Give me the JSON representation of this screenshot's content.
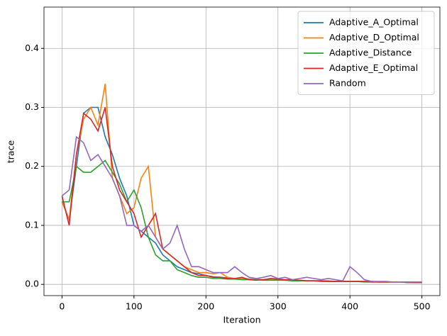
{
  "chart_data": {
    "type": "line",
    "xlabel": "Iteration",
    "ylabel": "trace",
    "x": [
      0,
      10,
      20,
      30,
      40,
      50,
      60,
      70,
      80,
      90,
      100,
      110,
      120,
      130,
      140,
      150,
      160,
      170,
      180,
      190,
      200,
      210,
      220,
      230,
      240,
      250,
      260,
      270,
      280,
      290,
      300,
      310,
      320,
      330,
      340,
      350,
      360,
      370,
      380,
      390,
      400,
      410,
      420,
      430,
      440,
      450,
      460,
      470,
      480,
      490,
      500
    ],
    "series": [
      {
        "name": "Adaptive_A_Optimal",
        "color": "#1f77b4",
        "values": [
          0.14,
          0.11,
          0.2,
          0.29,
          0.3,
          0.3,
          0.25,
          0.22,
          0.18,
          0.15,
          0.1,
          0.09,
          0.08,
          0.07,
          0.05,
          0.04,
          0.03,
          0.025,
          0.02,
          0.018,
          0.015,
          0.013,
          0.012,
          0.011,
          0.01,
          0.01,
          0.009,
          0.009,
          0.008,
          0.008,
          0.008,
          0.007,
          0.007,
          0.007,
          0.006,
          0.006,
          0.006,
          0.006,
          0.005,
          0.005,
          0.005,
          0.005,
          0.005,
          0.005,
          0.004,
          0.004,
          0.004,
          0.004,
          0.004,
          0.003,
          0.003
        ]
      },
      {
        "name": "Adaptive_D_Optimal",
        "color": "#ff7f0e",
        "values": [
          0.14,
          0.11,
          0.22,
          0.28,
          0.3,
          0.27,
          0.34,
          0.18,
          0.15,
          0.12,
          0.13,
          0.18,
          0.2,
          0.08,
          0.06,
          0.05,
          0.04,
          0.03,
          0.025,
          0.02,
          0.02,
          0.018,
          0.02,
          0.012,
          0.01,
          0.01,
          0.009,
          0.009,
          0.008,
          0.008,
          0.008,
          0.007,
          0.007,
          0.007,
          0.006,
          0.006,
          0.006,
          0.006,
          0.005,
          0.005,
          0.005,
          0.005,
          0.005,
          0.005,
          0.004,
          0.004,
          0.004,
          0.004,
          0.004,
          0.003,
          0.003
        ]
      },
      {
        "name": "Adaptive_Distance",
        "color": "#2ca02c",
        "values": [
          0.14,
          0.14,
          0.2,
          0.19,
          0.19,
          0.2,
          0.21,
          0.19,
          0.17,
          0.14,
          0.16,
          0.13,
          0.08,
          0.05,
          0.04,
          0.04,
          0.025,
          0.02,
          0.015,
          0.012,
          0.012,
          0.01,
          0.01,
          0.009,
          0.009,
          0.008,
          0.008,
          0.008,
          0.007,
          0.007,
          0.007,
          0.007,
          0.006,
          0.006,
          0.006,
          0.006,
          0.005,
          0.005,
          0.005,
          0.005,
          0.005,
          0.005,
          0.004,
          0.004,
          0.004,
          0.004,
          0.004,
          0.004,
          0.003,
          0.003,
          0.003
        ]
      },
      {
        "name": "Adaptive_E_Optimal",
        "color": "#d62728",
        "values": [
          0.15,
          0.1,
          0.22,
          0.29,
          0.28,
          0.26,
          0.3,
          0.2,
          0.16,
          0.14,
          0.12,
          0.08,
          0.1,
          0.12,
          0.06,
          0.05,
          0.04,
          0.03,
          0.02,
          0.015,
          0.015,
          0.012,
          0.012,
          0.01,
          0.01,
          0.012,
          0.008,
          0.007,
          0.008,
          0.01,
          0.009,
          0.008,
          0.008,
          0.007,
          0.006,
          0.006,
          0.006,
          0.005,
          0.005,
          0.005,
          0.005,
          0.005,
          0.005,
          0.004,
          0.004,
          0.004,
          0.004,
          0.004,
          0.004,
          0.003,
          0.003
        ]
      },
      {
        "name": "Random",
        "color": "#9467bd",
        "values": [
          0.15,
          0.16,
          0.25,
          0.24,
          0.21,
          0.22,
          0.2,
          0.18,
          0.15,
          0.1,
          0.1,
          0.09,
          0.1,
          0.08,
          0.06,
          0.07,
          0.1,
          0.06,
          0.03,
          0.03,
          0.025,
          0.02,
          0.02,
          0.02,
          0.03,
          0.02,
          0.012,
          0.01,
          0.012,
          0.015,
          0.01,
          0.012,
          0.008,
          0.01,
          0.012,
          0.01,
          0.008,
          0.01,
          0.008,
          0.006,
          0.03,
          0.02,
          0.008,
          0.005,
          0.005,
          0.005,
          0.004,
          0.004,
          0.004,
          0.004,
          0.004
        ]
      }
    ],
    "xlim": [
      -25,
      525
    ],
    "ylim": [
      -0.019,
      0.47
    ],
    "xticks": [
      0,
      100,
      200,
      300,
      400,
      500
    ],
    "yticks": [
      {
        "value": 0,
        "label": "0.0"
      },
      0.1,
      0.2,
      0.3,
      0.4
    ],
    "grid": true,
    "legend": "upper right"
  }
}
